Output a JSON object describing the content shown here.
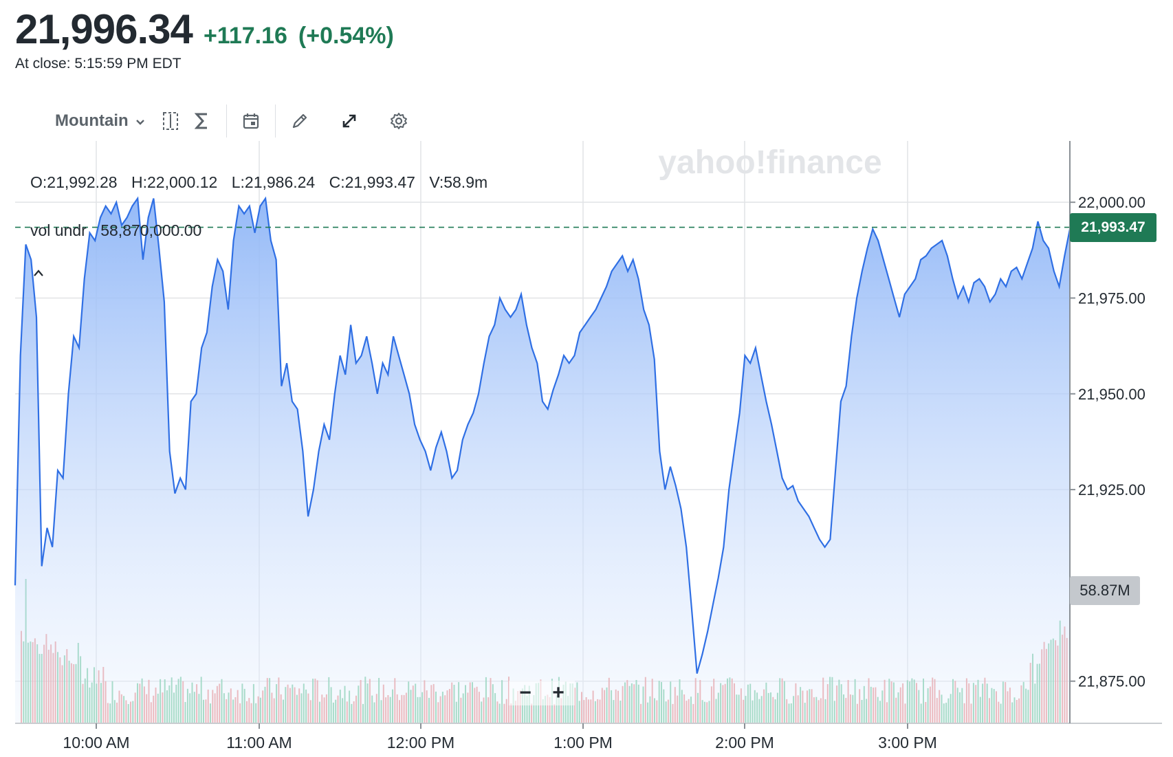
{
  "quote": {
    "price": "21,996.34",
    "change": "+117.16",
    "change_pct": "(+0.54%)",
    "close_label": "At close: 5:15:59 PM EDT"
  },
  "toolbar": {
    "chart_type": "Mountain",
    "icons": [
      "compare-icon",
      "indicators-icon",
      "events-icon",
      "draw-icon",
      "expand-icon",
      "settings-icon"
    ]
  },
  "ohlc": {
    "open": "O:21,992.28",
    "high": "H:22,000.12",
    "low": "L:21,986.24",
    "close": "C:21,993.47",
    "volume": "V:58.9m"
  },
  "volume_row": {
    "label": "vol undr",
    "value": "58,870,000.00"
  },
  "watermark": "yahoo!finance",
  "price_tag": "21,993.47",
  "volume_tag": "58.87M",
  "zoom": {
    "minus": "−",
    "plus": "+"
  },
  "colors": {
    "line": "#2f6fe4",
    "up": "#1f7a55",
    "volume_up": "#6cc79a",
    "volume_down": "#ea8a8a"
  },
  "chart_data": {
    "type": "area",
    "x_labels": [
      "10:00 AM",
      "11:00 AM",
      "12:00 PM",
      "1:00 PM",
      "2:00 PM",
      "3:00 PM"
    ],
    "y_ticks": [
      "22,000.00",
      "21,975.00",
      "21,950.00",
      "21,925.00",
      "21,875.00"
    ],
    "ylim": [
      21864,
      22016
    ],
    "reference_close": 21993.47,
    "grid": true,
    "series": [
      {
        "values": [
          21900,
          21960,
          21989,
          21985,
          21970,
          21905,
          21915,
          21910,
          21930,
          21928,
          21950,
          21965,
          21962,
          21980,
          21992,
          21990,
          21996,
          21999,
          21997,
          22000,
          21994,
          21996,
          21999,
          22001,
          21985,
          21996,
          22001,
          21988,
          21974,
          21935,
          21924,
          21928,
          21925,
          21948,
          21950,
          21962,
          21966,
          21978,
          21985,
          21982,
          21972,
          21990,
          21999,
          21997,
          21999,
          21992,
          21999,
          22001,
          21990,
          21985,
          21952,
          21958,
          21948,
          21946,
          21935,
          21918,
          21925,
          21935,
          21942,
          21938,
          21950,
          21960,
          21955,
          21968,
          21958,
          21960,
          21965,
          21958,
          21950,
          21958,
          21955,
          21965,
          21960,
          21955,
          21950,
          21942,
          21938,
          21935,
          21930,
          21936,
          21940,
          21935,
          21928,
          21930,
          21938,
          21942,
          21945,
          21950,
          21958,
          21965,
          21968,
          21975,
          21972,
          21970,
          21972,
          21976,
          21968,
          21962,
          21958,
          21948,
          21946,
          21951,
          21955,
          21960,
          21958,
          21960,
          21966,
          21968,
          21970,
          21972,
          21975,
          21978,
          21982,
          21984,
          21986,
          21982,
          21985,
          21980,
          21972,
          21968,
          21959,
          21935,
          21925,
          21931,
          21926,
          21920,
          21910,
          21894,
          21877,
          21882,
          21888,
          21895,
          21902,
          21910,
          21925,
          21935,
          21945,
          21960,
          21958,
          21962,
          21955,
          21948,
          21942,
          21935,
          21928,
          21925,
          21926,
          21922,
          21920,
          21918,
          21915,
          21912,
          21910,
          21912,
          21930,
          21948,
          21952,
          21965,
          21975,
          21982,
          21988,
          21993,
          21990,
          21985,
          21980,
          21975,
          21970,
          21976,
          21978,
          21980,
          21985,
          21986,
          21988,
          21989,
          21990,
          21986,
          21980,
          21975,
          21978,
          21974,
          21979,
          21980,
          21978,
          21974,
          21976,
          21980,
          21978,
          21982,
          21983,
          21980,
          21984,
          21988,
          21995,
          21990,
          21988,
          21982,
          21978,
          21986,
          21993
        ]
      }
    ],
    "volume": {
      "label": "vol undr",
      "latest": "58.87M"
    }
  }
}
